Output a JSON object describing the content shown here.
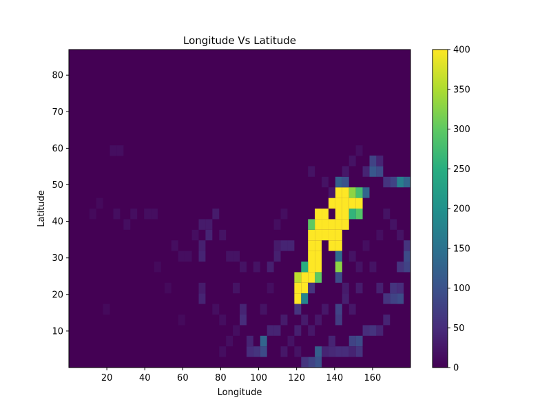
{
  "chart_data": {
    "type": "heatmap",
    "title": "Longitude Vs Latitude",
    "xlabel": "Longitude",
    "ylabel": "Latitude",
    "xlim": [
      0,
      180
    ],
    "ylim": [
      0,
      87
    ],
    "x_ticks": [
      "20",
      "40",
      "60",
      "80",
      "100",
      "120",
      "140",
      "160"
    ],
    "y_ticks": [
      "10",
      "20",
      "30",
      "40",
      "50",
      "60",
      "70",
      "80"
    ],
    "bin_width": 3.6,
    "bin_height": 2.9,
    "colorbar": {
      "vmin": 0,
      "vmax": 400,
      "colormap": "viridis",
      "ticks": [
        "0",
        "50",
        "100",
        "150",
        "200",
        "250",
        "300",
        "350",
        "400"
      ]
    },
    "background_value": 0,
    "cells": [
      [
        129.6,
        40.6,
        400
      ],
      [
        133.2,
        40.6,
        400
      ],
      [
        136.8,
        43.5,
        400
      ],
      [
        140.4,
        43.5,
        400
      ],
      [
        144,
        43.5,
        400
      ],
      [
        140.4,
        40.6,
        400
      ],
      [
        144,
        40.6,
        400
      ],
      [
        140.4,
        46.4,
        400
      ],
      [
        144,
        46.4,
        400
      ],
      [
        136.8,
        37.7,
        400
      ],
      [
        140.4,
        37.7,
        400
      ],
      [
        144,
        37.7,
        400
      ],
      [
        133.2,
        37.7,
        400
      ],
      [
        129.6,
        37.7,
        400
      ],
      [
        126,
        34.8,
        400
      ],
      [
        129.6,
        34.8,
        400
      ],
      [
        133.2,
        34.8,
        400
      ],
      [
        136.8,
        34.8,
        400
      ],
      [
        140.4,
        34.8,
        400
      ],
      [
        126,
        31.9,
        400
      ],
      [
        129.6,
        31.9,
        400
      ],
      [
        136.8,
        31.9,
        400
      ],
      [
        140.4,
        31.9,
        400
      ],
      [
        126,
        29,
        400
      ],
      [
        129.6,
        29,
        400
      ],
      [
        126,
        26.1,
        400
      ],
      [
        129.6,
        26.1,
        400
      ],
      [
        122.4,
        23.2,
        400
      ],
      [
        126,
        23.2,
        400
      ],
      [
        118.8,
        20.3,
        400
      ],
      [
        122.4,
        20.3,
        400
      ],
      [
        118.8,
        17.4,
        400
      ],
      [
        147.6,
        43.5,
        400
      ],
      [
        151.2,
        43.5,
        400
      ],
      [
        147.6,
        46.4,
        330
      ],
      [
        151.2,
        46.4,
        280
      ],
      [
        151.2,
        40.6,
        290
      ],
      [
        147.6,
        40.6,
        260
      ],
      [
        126,
        37.7,
        300
      ],
      [
        129.6,
        23.2,
        300
      ],
      [
        140.4,
        26.1,
        330
      ],
      [
        140.4,
        29,
        140
      ],
      [
        122.4,
        26.1,
        250
      ],
      [
        118.8,
        23.2,
        360
      ],
      [
        122.4,
        17.4,
        180
      ],
      [
        118.8,
        14.5,
        60
      ],
      [
        140.4,
        23.2,
        90
      ],
      [
        126,
        20.3,
        60
      ],
      [
        144,
        49.3,
        100
      ],
      [
        140.4,
        49.3,
        120
      ],
      [
        154.8,
        46.4,
        130
      ],
      [
        158.4,
        52.2,
        110
      ],
      [
        162,
        52.2,
        90
      ],
      [
        169.2,
        49.3,
        80
      ],
      [
        172.8,
        49.3,
        170
      ],
      [
        176.4,
        49.3,
        130
      ],
      [
        165.6,
        49.3,
        60
      ],
      [
        154.8,
        52.2,
        40
      ],
      [
        158.4,
        55.1,
        80
      ],
      [
        162,
        55.1,
        40
      ],
      [
        176.4,
        26.1,
        80
      ],
      [
        176.4,
        29,
        90
      ],
      [
        176.4,
        31.9,
        60
      ],
      [
        172.8,
        26.1,
        60
      ],
      [
        169.2,
        17.4,
        80
      ],
      [
        172.8,
        17.4,
        90
      ],
      [
        169.2,
        20.3,
        60
      ],
      [
        165.6,
        17.4,
        60
      ],
      [
        158.4,
        8.7,
        60
      ],
      [
        154.8,
        8.7,
        50
      ],
      [
        151.2,
        5.8,
        90
      ],
      [
        147.6,
        5.8,
        80
      ],
      [
        151.2,
        2.9,
        60
      ],
      [
        140.4,
        11.6,
        70
      ],
      [
        140.4,
        14.5,
        80
      ],
      [
        129.6,
        2.9,
        120
      ],
      [
        129.6,
        0,
        100
      ],
      [
        126,
        0,
        80
      ],
      [
        122.4,
        0,
        60
      ],
      [
        100.8,
        2.9,
        90
      ],
      [
        100.8,
        5.8,
        130
      ],
      [
        97.2,
        2.9,
        60
      ],
      [
        93.6,
        2.9,
        50
      ],
      [
        93.6,
        5.8,
        40
      ],
      [
        90,
        11.6,
        50
      ],
      [
        90,
        14.5,
        40
      ],
      [
        111.6,
        31.9,
        40
      ],
      [
        115.2,
        31.9,
        40
      ],
      [
        108,
        29,
        35
      ],
      [
        104.4,
        26.1,
        35
      ],
      [
        108,
        31.9,
        30
      ],
      [
        68.4,
        17.4,
        40
      ],
      [
        68.4,
        20.3,
        30
      ],
      [
        68.4,
        29,
        40
      ],
      [
        68.4,
        31.9,
        35
      ],
      [
        72,
        34.8,
        40
      ],
      [
        68.4,
        37.7,
        30
      ],
      [
        72,
        37.7,
        30
      ],
      [
        75.6,
        40.6,
        30
      ],
      [
        104.4,
        8.7,
        40
      ],
      [
        108,
        8.7,
        40
      ],
      [
        111.6,
        11.6,
        30
      ],
      [
        136.8,
        5.8,
        40
      ],
      [
        133.2,
        2.9,
        40
      ],
      [
        122.4,
        11.6,
        30
      ],
      [
        118.8,
        8.7,
        35
      ],
      [
        162,
        8.7,
        40
      ],
      [
        165.6,
        11.6,
        40
      ],
      [
        172.8,
        20.3,
        50
      ],
      [
        151.2,
        20.3,
        30
      ],
      [
        162,
        20.3,
        35
      ],
      [
        140.4,
        2.9,
        50
      ],
      [
        144,
        2.9,
        50
      ],
      [
        147.6,
        2.9,
        40
      ],
      [
        136.8,
        2.9,
        45
      ],
      [
        23.4,
        40.6,
        15
      ],
      [
        28.8,
        37.7,
        15
      ],
      [
        32.4,
        40.6,
        15
      ],
      [
        21.6,
        57.9,
        15
      ],
      [
        25.2,
        57.9,
        15
      ],
      [
        39.6,
        40.6,
        15
      ],
      [
        43.2,
        40.6,
        15
      ],
      [
        54,
        31.9,
        15
      ],
      [
        57.6,
        29,
        15
      ],
      [
        61.2,
        29,
        15
      ],
      [
        64.8,
        34.8,
        15
      ],
      [
        82.8,
        29,
        20
      ],
      [
        86.4,
        29,
        20
      ],
      [
        79.2,
        34.8,
        20
      ],
      [
        86.4,
        20.3,
        20
      ],
      [
        90,
        26.1,
        20
      ],
      [
        97.2,
        26.1,
        20
      ],
      [
        75.6,
        14.5,
        15
      ],
      [
        79.2,
        11.6,
        15
      ],
      [
        86.4,
        8.7,
        15
      ],
      [
        79.2,
        2.9,
        15
      ],
      [
        82.8,
        5.8,
        15
      ],
      [
        111.6,
        40.6,
        15
      ],
      [
        108,
        37.7,
        15
      ],
      [
        126,
        52.2,
        20
      ],
      [
        133.2,
        49.3,
        20
      ],
      [
        136.8,
        46.4,
        25
      ],
      [
        144,
        52.2,
        25
      ],
      [
        147.6,
        55.1,
        20
      ],
      [
        151.2,
        57.9,
        15
      ],
      [
        165.6,
        40.6,
        20
      ],
      [
        169.2,
        37.7,
        20
      ],
      [
        172.8,
        34.8,
        20
      ],
      [
        162,
        34.8,
        15
      ],
      [
        158.4,
        26.1,
        20
      ],
      [
        151.2,
        26.1,
        20
      ],
      [
        154.8,
        31.9,
        15
      ],
      [
        147.6,
        29,
        20
      ],
      [
        144,
        20.3,
        30
      ],
      [
        144,
        17.4,
        35
      ],
      [
        147.6,
        14.5,
        25
      ],
      [
        133.2,
        14.5,
        25
      ],
      [
        129.6,
        11.6,
        25
      ],
      [
        126,
        8.7,
        25
      ],
      [
        111.6,
        2.9,
        25
      ],
      [
        115.2,
        5.8,
        20
      ],
      [
        118.8,
        2.9,
        20
      ],
      [
        14.4,
        43.5,
        10
      ],
      [
        10.8,
        40.6,
        10
      ],
      [
        18,
        14.5,
        10
      ],
      [
        45,
        26.1,
        10
      ],
      [
        50.4,
        20.3,
        10
      ],
      [
        57.6,
        11.6,
        10
      ],
      [
        100.8,
        14.5,
        20
      ],
      [
        104.4,
        20.3,
        15
      ]
    ]
  }
}
